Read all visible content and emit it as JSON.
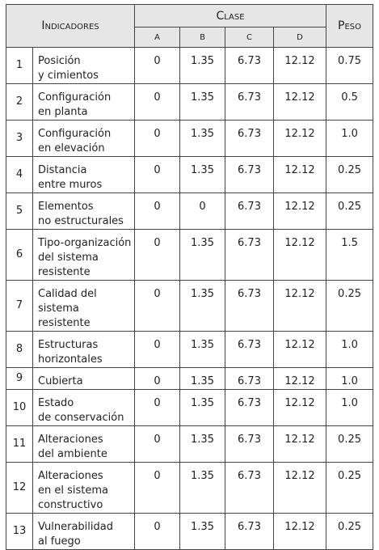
{
  "table": {
    "header": {
      "indicators": "Indicadores",
      "class": "Clase",
      "weight": "Peso",
      "classes": [
        "A",
        "B",
        "C",
        "D"
      ]
    },
    "rows": [
      [
        "1",
        "Posición\ny cimientos",
        "0",
        "1.35",
        "6.73",
        "12.12",
        "0.75"
      ],
      [
        "2",
        "Configuración\nen planta",
        "0",
        "1.35",
        "6.73",
        "12.12",
        "0.5"
      ],
      [
        "3",
        "Configuración\nen elevación",
        "0",
        "1.35",
        "6.73",
        "12.12",
        "1.0"
      ],
      [
        "4",
        "Distancia\nentre muros",
        "0",
        "1.35",
        "6.73",
        "12.12",
        "0.25"
      ],
      [
        "5",
        "Elementos\nno estructurales",
        "0",
        "0",
        "6.73",
        "12.12",
        "0.25"
      ],
      [
        "6",
        "Tipo-organización\ndel sistema\nresistente",
        "0",
        "1.35",
        "6.73",
        "12.12",
        "1.5"
      ],
      [
        "7",
        "Calidad del\nsistema resistente",
        "0",
        "1.35",
        "6.73",
        "12.12",
        "0.25"
      ],
      [
        "8",
        "Estructuras\nhorizontales",
        "0",
        "1.35",
        "6.73",
        "12.12",
        "1.0"
      ],
      [
        "9",
        "Cubierta",
        "0",
        "1.35",
        "6.73",
        "12.12",
        "1.0"
      ],
      [
        "10",
        "Estado\nde conservación",
        "0",
        "1.35",
        "6.73",
        "12.12",
        "1.0"
      ],
      [
        "11",
        "Alteraciones\ndel ambiente",
        "0",
        "1.35",
        "6.73",
        "12.12",
        "0.25"
      ],
      [
        "12",
        "Alteraciones\nen el sistema\nconstructivo",
        "0",
        "1.35",
        "6.73",
        "12.12",
        "0.25"
      ],
      [
        "13",
        "Vulnerabilidad\nal fuego",
        "0",
        "1.35",
        "6.73",
        "12.12",
        "0.25"
      ]
    ]
  }
}
